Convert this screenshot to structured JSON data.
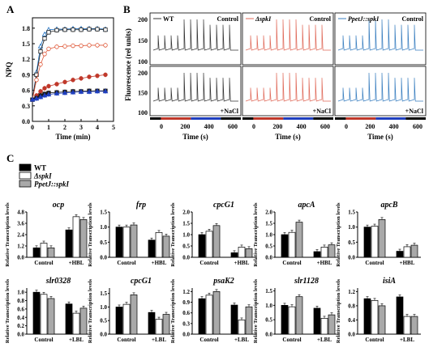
{
  "panels": {
    "A": "A",
    "B": "B",
    "C": "C"
  },
  "chart_data": [
    {
      "id": "A",
      "type": "line",
      "xlabel": "Time (min)",
      "ylabel": "NPQ",
      "xlim": [
        0,
        5
      ],
      "ylim": [
        0,
        2.0
      ],
      "xticks": [
        "0",
        "1",
        "2",
        "3",
        "4",
        "5"
      ],
      "yticks": [
        "0.0",
        "0.3",
        "0.6",
        "0.9",
        "1.2",
        "1.5",
        "1.8"
      ],
      "x": [
        0,
        0.25,
        0.5,
        0.75,
        1.0,
        1.5,
        2.0,
        2.5,
        3.0,
        3.5,
        4.0,
        4.5
      ],
      "series": [
        {
          "marker": "triangle-open",
          "color": "#1f6fbf",
          "values": [
            0.42,
            0.95,
            1.45,
            1.68,
            1.77,
            1.78,
            1.78,
            1.79,
            1.79,
            1.79,
            1.79,
            1.78
          ]
        },
        {
          "marker": "square-open",
          "color": "#1a1a1a",
          "values": [
            0.42,
            0.9,
            1.35,
            1.6,
            1.72,
            1.76,
            1.77,
            1.77,
            1.77,
            1.78,
            1.78,
            1.77
          ]
        },
        {
          "marker": "circle-open",
          "color": "#e05a3a",
          "values": [
            0.42,
            0.8,
            1.1,
            1.3,
            1.4,
            1.44,
            1.45,
            1.46,
            1.46,
            1.47,
            1.47,
            1.47
          ]
        },
        {
          "marker": "circle-filled",
          "color": "#c0392b",
          "values": [
            0.42,
            0.5,
            0.58,
            0.64,
            0.68,
            0.72,
            0.76,
            0.8,
            0.83,
            0.86,
            0.88,
            0.9
          ]
        },
        {
          "marker": "square-filled",
          "color": "#1a1a1a",
          "values": [
            0.42,
            0.45,
            0.5,
            0.53,
            0.55,
            0.56,
            0.57,
            0.58,
            0.58,
            0.59,
            0.59,
            0.59
          ]
        },
        {
          "marker": "triangle-filled",
          "color": "#1f3fbf",
          "values": [
            0.42,
            0.44,
            0.47,
            0.5,
            0.52,
            0.54,
            0.55,
            0.56,
            0.57,
            0.57,
            0.58,
            0.58
          ]
        }
      ]
    },
    {
      "id": "B",
      "type": "line",
      "ylabel": "Fluorescence (rel units)",
      "xlabel": "Time (s)",
      "xticks": [
        "0",
        "200",
        "400",
        "600"
      ],
      "yticks": [
        "100",
        "150",
        "200"
      ],
      "columns": [
        {
          "legend": "WT",
          "color": "#333333"
        },
        {
          "legend": "ΔspkI",
          "color": "#e06a5a"
        },
        {
          "legend": "PpetJ::spkI",
          "color": "#3a7fc0"
        }
      ],
      "rows": [
        "Control",
        "+NaCl"
      ]
    },
    {
      "id": "C",
      "type": "bar",
      "legend": [
        "WT",
        "ΔspkI",
        "PpetJ::spkI"
      ],
      "colors": [
        "#000000",
        "#ffffff",
        "#a9a9a9"
      ],
      "ylabel": "Relative Transcription levels",
      "categories_top": [
        "Control",
        "+HBL"
      ],
      "categories_bottom": [
        "Control",
        "+LBL"
      ],
      "charts": [
        {
          "title": "ocp",
          "row": 0,
          "yticks": [
            "0.0",
            "1.2",
            "2.4",
            "3.6",
            "4.8"
          ],
          "ymax": 4.8,
          "values": [
            [
              1.0,
              1.5,
              1.0
            ],
            [
              2.9,
              4.3,
              4.0
            ]
          ]
        },
        {
          "title": "frp",
          "row": 0,
          "yticks": [
            "0.0",
            "0.5",
            "1.0",
            "1.5"
          ],
          "ymax": 1.5,
          "values": [
            [
              1.0,
              1.0,
              1.07
            ],
            [
              0.57,
              0.82,
              0.7
            ]
          ]
        },
        {
          "title": "cpcG1",
          "row": 0,
          "yticks": [
            "0.0",
            "0.5",
            "1.0",
            "1.5",
            "2.0"
          ],
          "ymax": 2.0,
          "values": [
            [
              1.0,
              1.15,
              1.4
            ],
            [
              0.2,
              0.45,
              0.38
            ]
          ]
        },
        {
          "title": "apcA",
          "row": 0,
          "yticks": [
            "0.0",
            "0.5",
            "1.0",
            "1.5",
            "2.0"
          ],
          "ymax": 2.0,
          "values": [
            [
              1.0,
              1.1,
              1.55
            ],
            [
              0.25,
              0.45,
              0.55
            ]
          ]
        },
        {
          "title": "apcB",
          "row": 0,
          "yticks": [
            "0.0",
            "0.5",
            "1.0",
            "1.5"
          ],
          "ymax": 1.5,
          "values": [
            [
              1.0,
              1.03,
              1.25
            ],
            [
              0.2,
              0.35,
              0.4
            ]
          ]
        },
        {
          "title": "slr0328",
          "row": 1,
          "yticks": [
            "0.0",
            "0.2",
            "0.4",
            "0.6",
            "0.8",
            "1.0"
          ],
          "ymax": 1.1,
          "values": [
            [
              1.0,
              0.95,
              0.85
            ],
            [
              0.72,
              0.5,
              0.62
            ]
          ]
        },
        {
          "title": "cpcG1",
          "row": 1,
          "yticks": [
            "0.0",
            "0.5",
            "1.0",
            "1.5"
          ],
          "ymax": 1.7,
          "values": [
            [
              1.0,
              1.1,
              1.45
            ],
            [
              0.8,
              0.55,
              0.73
            ]
          ]
        },
        {
          "title": "psaK2",
          "row": 1,
          "yticks": [
            "0.0",
            "0.3",
            "0.6",
            "0.9",
            "1.2"
          ],
          "ymax": 1.3,
          "values": [
            [
              1.0,
              1.1,
              1.2
            ],
            [
              0.82,
              0.4,
              0.77
            ]
          ]
        },
        {
          "title": "slr1128",
          "row": 1,
          "yticks": [
            "0.0",
            "0.5",
            "1.0",
            "1.5"
          ],
          "ymax": 1.6,
          "values": [
            [
              1.0,
              0.95,
              1.3
            ],
            [
              0.9,
              0.55,
              0.67
            ]
          ]
        },
        {
          "title": "isiA",
          "row": 1,
          "yticks": [
            "0.0",
            "0.4",
            "0.8",
            "1.2"
          ],
          "ymax": 1.3,
          "values": [
            [
              1.0,
              0.95,
              0.8
            ],
            [
              1.05,
              0.5,
              0.5
            ]
          ]
        }
      ]
    }
  ]
}
